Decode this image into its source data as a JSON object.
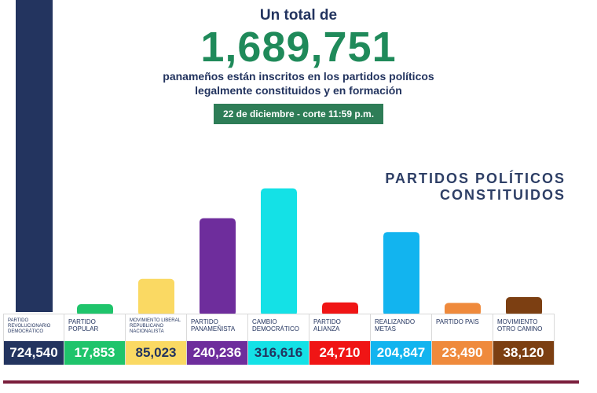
{
  "header": {
    "pre_title": "Un total de",
    "total": "1,689,751",
    "subtitle_line1": "panameños están inscritos en los partidos políticos",
    "subtitle_line2": "legalmente constituidos y en formación",
    "date_badge": "22 de diciembre - corte 11:59 p.m."
  },
  "section_title_line1": "PARTIDOS POLÍTICOS",
  "section_title_line2": "CONSTITUIDOS",
  "colors": {
    "navy": "#23345f",
    "green": "#1f8a5a",
    "badge_green": "#2e7d57",
    "bottom_line": "#7a1e3c"
  },
  "chart_data": {
    "type": "bar",
    "title": "PARTIDOS POLÍTICOS CONSTITUIDOS",
    "xlabel": "",
    "ylabel": "",
    "categories": [
      "PARTIDO REVOLUCIONARIO DEMOCRÁTICO",
      "PARTIDO POPULAR",
      "MOVIMIENTO LIBERAL REPUBLICANO NACIONALISTA",
      "PARTIDO PANAMEÑISTA",
      "CAMBIO DEMOCRÁTICO",
      "PARTIDO ALIANZA",
      "REALIZANDO METAS",
      "PARTIDO PAIS",
      "MOVIMIENTO OTRO CAMINO"
    ],
    "values": [
      724540,
      17853,
      85023,
      240236,
      316616,
      24710,
      204847,
      23490,
      38120
    ],
    "value_labels": [
      "724,540",
      "17,853",
      "85,023",
      "240,236",
      "316,616",
      "24,710",
      "204,847",
      "23,490",
      "38,120"
    ],
    "bar_colors": [
      "#23345f",
      "#1fc46b",
      "#fad963",
      "#6e2d9c",
      "#14e1e6",
      "#f01515",
      "#12b4ef",
      "#ef8a3c",
      "#7c3f12"
    ],
    "value_text_colors": [
      "#ffffff",
      "#ffffff",
      "#23345f",
      "#ffffff",
      "#23345f",
      "#ffffff",
      "#ffffff",
      "#ffffff",
      "#ffffff"
    ],
    "ylim": [
      0,
      330000
    ],
    "legend": "none",
    "grid": false
  }
}
